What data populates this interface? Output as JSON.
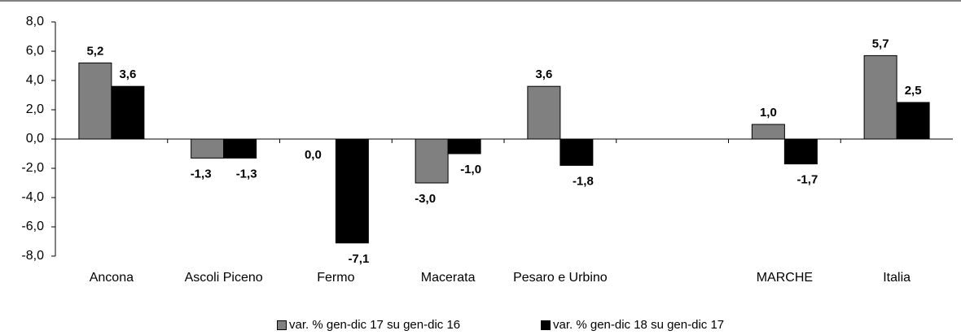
{
  "chart_data": {
    "type": "bar",
    "categories": [
      "Ancona",
      "Ascoli Piceno",
      "Fermo",
      "Macerata",
      "Pesaro e Urbino",
      null,
      "MARCHE",
      "Italia"
    ],
    "series": [
      {
        "name": "var. % gen-dic 17 su gen-dic 16",
        "color": "#808080",
        "values": [
          5.2,
          -1.3,
          0.0,
          -3.0,
          3.6,
          null,
          1.0,
          5.7
        ],
        "value_labels": [
          "5,2",
          "-1,3",
          "0,0",
          "-3,0",
          "3,6",
          null,
          "1,0",
          "5,7"
        ]
      },
      {
        "name": "var. % gen-dic 18 su gen-dic 17",
        "color": "#000000",
        "values": [
          3.6,
          -1.3,
          -7.1,
          -1.0,
          -1.8,
          null,
          -1.7,
          2.5
        ],
        "value_labels": [
          "3,6",
          "-1,3",
          "-7,1",
          "-1,0",
          "-1,8",
          null,
          "-1,7",
          "2,5"
        ]
      }
    ],
    "ylim": [
      -8,
      8
    ],
    "yticks": [
      {
        "value": -8,
        "label": "-8,0"
      },
      {
        "value": -6,
        "label": "-6,0"
      },
      {
        "value": -4,
        "label": "-4,0"
      },
      {
        "value": -2,
        "label": "-2,0"
      },
      {
        "value": 0,
        "label": "0,0"
      },
      {
        "value": 2,
        "label": "2,0"
      },
      {
        "value": 4,
        "label": "4,0"
      },
      {
        "value": 6,
        "label": "6,0"
      },
      {
        "value": 8,
        "label": "8,0"
      }
    ],
    "grid": false
  }
}
